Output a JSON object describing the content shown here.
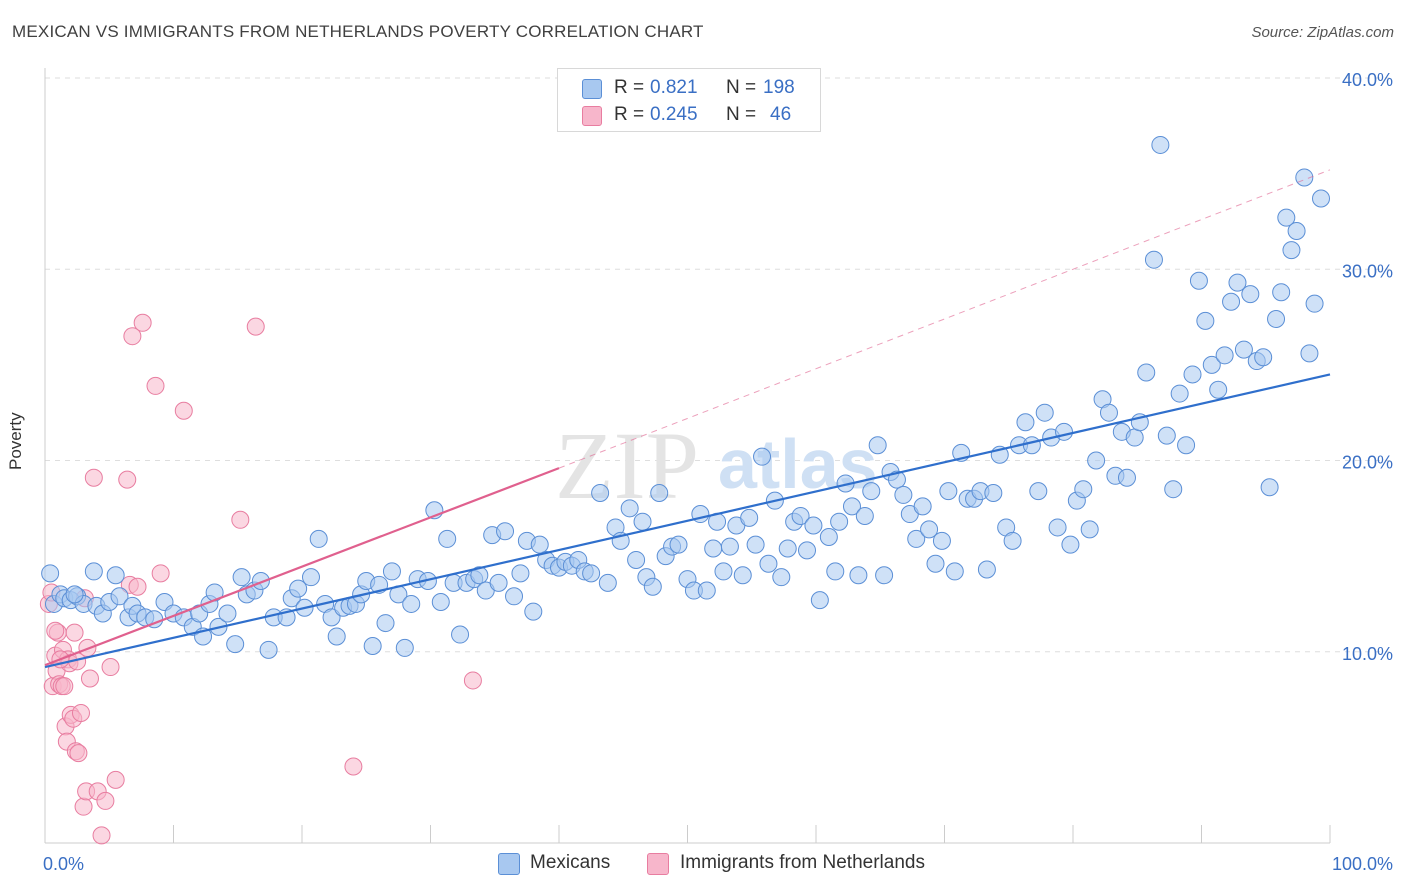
{
  "title": "MEXICAN VS IMMIGRANTS FROM NETHERLANDS POVERTY CORRELATION CHART",
  "source": "Source: ZipAtlas.com",
  "watermark": {
    "zip": "ZIP",
    "atlas": "atlas"
  },
  "legend": {
    "series1": {
      "r_label": "R =",
      "r_value": "0.821",
      "n_label": "N =",
      "n_value": "198"
    },
    "series2": {
      "r_label": "R =",
      "r_value": "0.245",
      "n_label": "N =",
      "n_value": "46"
    }
  },
  "colors": {
    "blue_fill": "#a8c8f0",
    "blue_stroke": "#5b8fd6",
    "blue_line": "#2f6fcc",
    "pink_fill": "#f7b6cb",
    "pink_stroke": "#e87da0",
    "pink_line": "#e0608e",
    "axis_text": "#3a6fc4"
  },
  "chart_data": {
    "type": "scatter",
    "title": "MEXICAN VS IMMIGRANTS FROM NETHERLANDS POVERTY CORRELATION CHART",
    "xlabel": "",
    "ylabel": "Poverty",
    "xlim": [
      0,
      100
    ],
    "ylim": [
      0,
      40
    ],
    "x_tick_labels": [
      "0.0%",
      "100.0%"
    ],
    "y_ticks": [
      10,
      20,
      30,
      40
    ],
    "y_tick_labels": [
      "10.0%",
      "20.0%",
      "30.0%",
      "40.0%"
    ],
    "grid": true,
    "legend_position": "bottom",
    "series": [
      {
        "name": "Mexicans",
        "trend": {
          "x": [
            0,
            100
          ],
          "y": [
            9.2,
            24.5
          ]
        },
        "points": [
          [
            0.4,
            14.1
          ],
          [
            0.7,
            12.5
          ],
          [
            1.2,
            13.0
          ],
          [
            1.5,
            12.8
          ],
          [
            2.0,
            12.7
          ],
          [
            2.5,
            12.9
          ],
          [
            3.0,
            12.5
          ],
          [
            3.8,
            14.2
          ],
          [
            4.0,
            12.4
          ],
          [
            4.5,
            12.0
          ],
          [
            5.0,
            12.6
          ],
          [
            5.5,
            14.0
          ],
          [
            5.8,
            12.9
          ],
          [
            6.5,
            11.8
          ],
          [
            6.8,
            12.4
          ],
          [
            7.2,
            12.0
          ],
          [
            7.8,
            11.8
          ],
          [
            8.5,
            11.7
          ],
          [
            9.3,
            12.6
          ],
          [
            10.0,
            12.0
          ],
          [
            10.8,
            11.8
          ],
          [
            11.5,
            11.3
          ],
          [
            12.0,
            12.0
          ],
          [
            12.3,
            10.8
          ],
          [
            12.8,
            12.5
          ],
          [
            13.2,
            13.1
          ],
          [
            13.5,
            11.3
          ],
          [
            14.2,
            12.0
          ],
          [
            14.8,
            10.4
          ],
          [
            15.3,
            13.9
          ],
          [
            15.7,
            13.0
          ],
          [
            16.3,
            13.2
          ],
          [
            16.8,
            13.7
          ],
          [
            17.4,
            10.1
          ],
          [
            17.8,
            11.8
          ],
          [
            18.8,
            11.8
          ],
          [
            19.2,
            12.8
          ],
          [
            19.7,
            13.3
          ],
          [
            20.2,
            12.3
          ],
          [
            20.7,
            13.9
          ],
          [
            21.3,
            15.9
          ],
          [
            21.8,
            12.5
          ],
          [
            22.3,
            11.8
          ],
          [
            22.7,
            10.8
          ],
          [
            23.2,
            12.3
          ],
          [
            23.7,
            12.4
          ],
          [
            24.2,
            12.5
          ],
          [
            24.6,
            13.0
          ],
          [
            25.0,
            13.7
          ],
          [
            25.5,
            10.3
          ],
          [
            26.0,
            13.5
          ],
          [
            26.5,
            11.5
          ],
          [
            27.0,
            14.2
          ],
          [
            27.5,
            13.0
          ],
          [
            28.0,
            10.2
          ],
          [
            28.5,
            12.5
          ],
          [
            29.0,
            13.8
          ],
          [
            29.8,
            13.7
          ],
          [
            30.3,
            17.4
          ],
          [
            30.8,
            12.6
          ],
          [
            31.3,
            15.9
          ],
          [
            31.8,
            13.6
          ],
          [
            32.3,
            10.9
          ],
          [
            32.8,
            13.6
          ],
          [
            33.4,
            13.8
          ],
          [
            33.8,
            14.0
          ],
          [
            34.3,
            13.2
          ],
          [
            34.8,
            16.1
          ],
          [
            35.3,
            13.6
          ],
          [
            35.8,
            16.3
          ],
          [
            36.5,
            12.9
          ],
          [
            37.0,
            14.1
          ],
          [
            37.5,
            15.8
          ],
          [
            38.0,
            12.1
          ],
          [
            38.5,
            15.6
          ],
          [
            39.0,
            14.8
          ],
          [
            39.5,
            14.5
          ],
          [
            40.0,
            14.4
          ],
          [
            40.5,
            14.7
          ],
          [
            41.0,
            14.5
          ],
          [
            41.5,
            14.8
          ],
          [
            42.0,
            14.2
          ],
          [
            42.5,
            14.1
          ],
          [
            43.2,
            18.3
          ],
          [
            43.8,
            13.6
          ],
          [
            44.4,
            16.5
          ],
          [
            44.8,
            15.8
          ],
          [
            45.5,
            17.5
          ],
          [
            46.0,
            14.8
          ],
          [
            46.5,
            16.8
          ],
          [
            46.8,
            13.9
          ],
          [
            47.3,
            13.4
          ],
          [
            47.8,
            18.3
          ],
          [
            48.3,
            15.0
          ],
          [
            48.8,
            15.5
          ],
          [
            49.3,
            15.6
          ],
          [
            50.0,
            13.8
          ],
          [
            50.5,
            13.2
          ],
          [
            51.0,
            17.2
          ],
          [
            51.5,
            13.2
          ],
          [
            52.0,
            15.4
          ],
          [
            52.3,
            16.8
          ],
          [
            52.8,
            14.2
          ],
          [
            53.3,
            15.5
          ],
          [
            53.8,
            16.6
          ],
          [
            54.3,
            14.0
          ],
          [
            54.8,
            17.0
          ],
          [
            55.3,
            15.6
          ],
          [
            55.8,
            20.2
          ],
          [
            56.3,
            14.6
          ],
          [
            56.8,
            17.9
          ],
          [
            57.3,
            13.9
          ],
          [
            57.8,
            15.4
          ],
          [
            58.3,
            16.8
          ],
          [
            58.8,
            17.1
          ],
          [
            59.3,
            15.3
          ],
          [
            59.8,
            16.6
          ],
          [
            60.3,
            12.7
          ],
          [
            61.0,
            16.0
          ],
          [
            61.5,
            14.2
          ],
          [
            61.8,
            16.8
          ],
          [
            62.3,
            18.8
          ],
          [
            62.8,
            17.6
          ],
          [
            63.3,
            14.0
          ],
          [
            63.8,
            17.1
          ],
          [
            64.3,
            18.4
          ],
          [
            64.8,
            20.8
          ],
          [
            65.3,
            14.0
          ],
          [
            65.8,
            19.4
          ],
          [
            66.3,
            19.0
          ],
          [
            66.8,
            18.2
          ],
          [
            67.3,
            17.2
          ],
          [
            67.8,
            15.9
          ],
          [
            68.3,
            17.6
          ],
          [
            68.8,
            16.4
          ],
          [
            69.3,
            14.6
          ],
          [
            69.8,
            15.8
          ],
          [
            70.3,
            18.4
          ],
          [
            70.8,
            14.2
          ],
          [
            71.3,
            20.4
          ],
          [
            71.8,
            18.0
          ],
          [
            72.3,
            18.0
          ],
          [
            72.8,
            18.4
          ],
          [
            73.3,
            14.3
          ],
          [
            73.8,
            18.3
          ],
          [
            74.3,
            20.3
          ],
          [
            74.8,
            16.5
          ],
          [
            75.3,
            15.8
          ],
          [
            75.8,
            20.8
          ],
          [
            76.3,
            22.0
          ],
          [
            76.8,
            20.8
          ],
          [
            77.3,
            18.4
          ],
          [
            77.8,
            22.5
          ],
          [
            78.3,
            21.2
          ],
          [
            78.8,
            16.5
          ],
          [
            79.3,
            21.5
          ],
          [
            79.8,
            15.6
          ],
          [
            80.3,
            17.9
          ],
          [
            80.8,
            18.5
          ],
          [
            81.3,
            16.4
          ],
          [
            81.8,
            20.0
          ],
          [
            82.3,
            23.2
          ],
          [
            82.8,
            22.5
          ],
          [
            83.3,
            19.2
          ],
          [
            83.8,
            21.5
          ],
          [
            84.2,
            19.1
          ],
          [
            84.8,
            21.2
          ],
          [
            85.2,
            22.0
          ],
          [
            85.7,
            24.6
          ],
          [
            86.3,
            30.5
          ],
          [
            86.8,
            36.5
          ],
          [
            87.3,
            21.3
          ],
          [
            87.8,
            18.5
          ],
          [
            88.3,
            23.5
          ],
          [
            88.8,
            20.8
          ],
          [
            89.3,
            24.5
          ],
          [
            89.8,
            29.4
          ],
          [
            90.3,
            27.3
          ],
          [
            90.8,
            25.0
          ],
          [
            91.3,
            23.7
          ],
          [
            91.8,
            25.5
          ],
          [
            92.3,
            28.3
          ],
          [
            92.8,
            29.3
          ],
          [
            93.3,
            25.8
          ],
          [
            93.8,
            28.7
          ],
          [
            94.3,
            25.2
          ],
          [
            94.8,
            25.4
          ],
          [
            95.3,
            18.6
          ],
          [
            95.8,
            27.4
          ],
          [
            96.2,
            28.8
          ],
          [
            96.6,
            32.7
          ],
          [
            97.0,
            31.0
          ],
          [
            97.4,
            32.0
          ],
          [
            98.0,
            34.8
          ],
          [
            98.4,
            25.6
          ],
          [
            98.8,
            28.2
          ],
          [
            99.3,
            33.7
          ],
          [
            2.3,
            13.0
          ]
        ]
      },
      {
        "name": "Immigrants from Netherlands",
        "trend": {
          "x": [
            0,
            40
          ],
          "y": [
            9.3,
            19.6
          ]
        },
        "trend_extension": {
          "x": [
            40,
            100
          ],
          "y": [
            19.6,
            35.2
          ]
        },
        "points": [
          [
            0.3,
            12.5
          ],
          [
            0.5,
            13.1
          ],
          [
            0.6,
            8.2
          ],
          [
            0.8,
            9.8
          ],
          [
            0.9,
            9.0
          ],
          [
            1.0,
            11.0
          ],
          [
            1.1,
            8.3
          ],
          [
            1.3,
            8.2
          ],
          [
            1.4,
            10.1
          ],
          [
            1.5,
            8.2
          ],
          [
            1.6,
            6.1
          ],
          [
            1.7,
            5.3
          ],
          [
            1.8,
            9.6
          ],
          [
            1.9,
            9.4
          ],
          [
            2.0,
            6.7
          ],
          [
            2.2,
            6.5
          ],
          [
            2.3,
            11.0
          ],
          [
            2.4,
            4.8
          ],
          [
            2.5,
            9.5
          ],
          [
            2.6,
            4.7
          ],
          [
            2.8,
            6.8
          ],
          [
            3.0,
            1.9
          ],
          [
            3.1,
            12.8
          ],
          [
            3.2,
            2.7
          ],
          [
            3.3,
            10.2
          ],
          [
            3.5,
            8.6
          ],
          [
            3.8,
            19.1
          ],
          [
            4.1,
            2.7
          ],
          [
            4.4,
            0.4
          ],
          [
            4.7,
            2.2
          ],
          [
            5.1,
            9.2
          ],
          [
            5.5,
            3.3
          ],
          [
            6.4,
            19.0
          ],
          [
            6.6,
            13.5
          ],
          [
            6.8,
            26.5
          ],
          [
            7.2,
            13.4
          ],
          [
            7.6,
            27.2
          ],
          [
            8.6,
            23.9
          ],
          [
            9.0,
            14.1
          ],
          [
            10.8,
            22.6
          ],
          [
            15.2,
            16.9
          ],
          [
            16.4,
            27.0
          ],
          [
            24.0,
            4.0
          ],
          [
            33.3,
            8.5
          ],
          [
            0.8,
            11.1
          ],
          [
            1.2,
            9.6
          ]
        ]
      }
    ]
  },
  "bottom_legend": {
    "item1": "Mexicans",
    "item2": "Immigrants from Netherlands"
  }
}
